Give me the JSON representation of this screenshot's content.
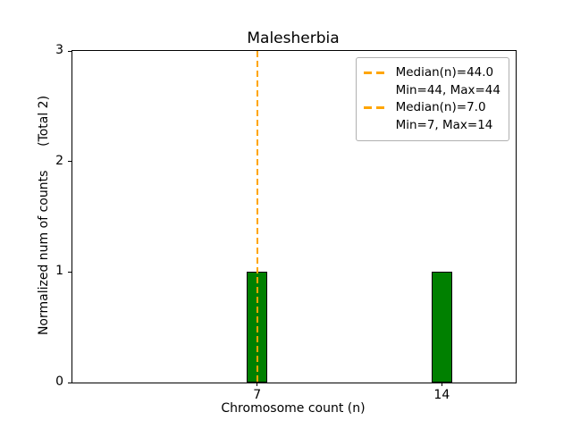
{
  "chart_data": {
    "type": "bar",
    "title": "Malesherbia",
    "xlabel": "Chromosome count (n)",
    "ylabel": "Normalized num of counts      (Total 2)",
    "categories": [
      7,
      14
    ],
    "values": [
      1,
      1
    ],
    "bar_width_units": 0.8,
    "xlim": [
      0,
      16.8
    ],
    "ylim": [
      0,
      3
    ],
    "yticks": [
      0,
      1,
      2,
      3
    ],
    "grid": false,
    "bar_color": "#008000",
    "bar_edge_color": "#000000",
    "median_lines": [
      {
        "x": 44.0,
        "color": "#FFA500",
        "style": "dashed"
      },
      {
        "x": 7.0,
        "color": "#FFA500",
        "style": "dashed"
      }
    ],
    "legend": {
      "position": "upper right",
      "line_color": "#FFA500",
      "entries": [
        {
          "label": "Median(n)=44.0",
          "sublabel": "Min=44, Max=44"
        },
        {
          "label": "Median(n)=7.0",
          "sublabel": "Min=7, Max=14"
        }
      ]
    }
  }
}
